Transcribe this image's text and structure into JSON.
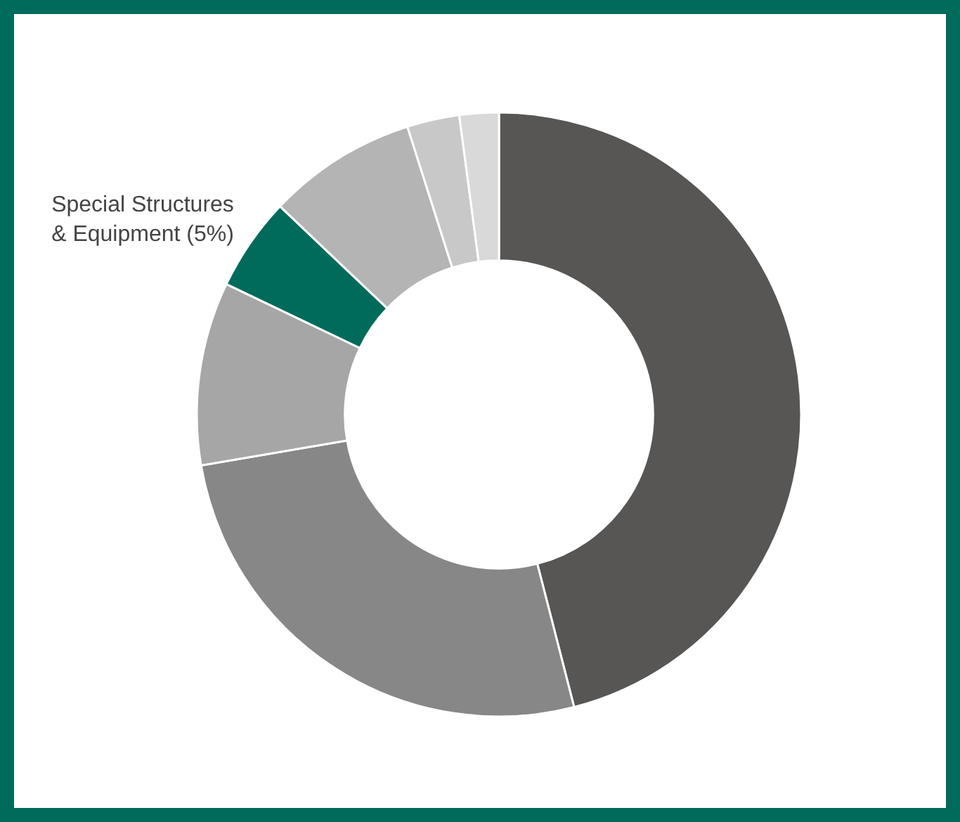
{
  "chart_data": {
    "type": "donut",
    "categories": [
      null,
      null,
      null,
      "Special Structures & Equipment (5%)",
      null,
      null,
      null
    ],
    "values": [
      46,
      26.3,
      9.8,
      5,
      8,
      2.8,
      2.1
    ],
    "colors": [
      "#575654",
      "#878787",
      "#a6a6a6",
      "#006b5b",
      "#b4b4b4",
      "#c8c8c8",
      "#d9d9d9"
    ]
  }
}
